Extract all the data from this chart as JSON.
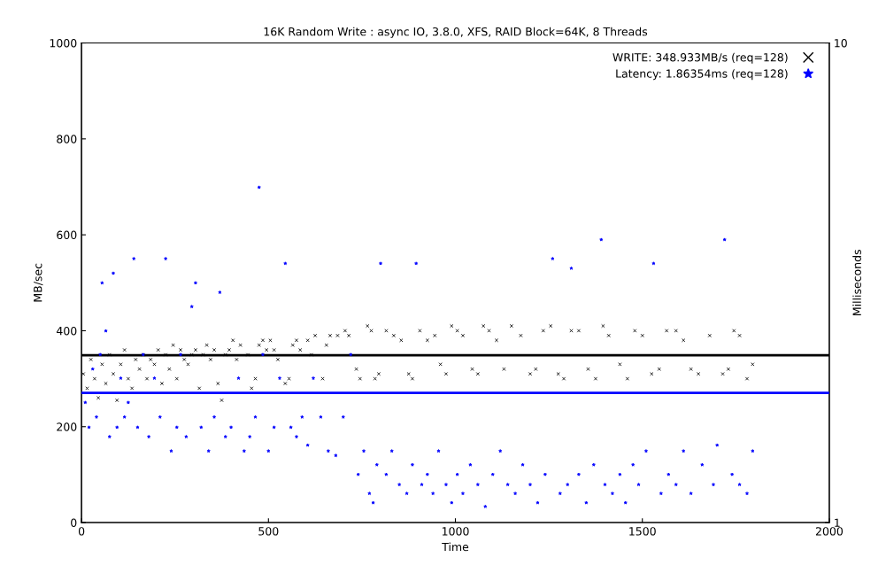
{
  "chart_data": {
    "type": "scatter",
    "title": "16K Random Write : async IO, 3.8.0, XFS, RAID Block=64K, 8 Threads",
    "xlabel": "Time",
    "ylabel": "MB/sec",
    "y2label": "Milliseconds",
    "xlim": [
      0,
      2000
    ],
    "xticks": [
      0,
      500,
      1000,
      1500,
      2000
    ],
    "ylim": [
      0,
      1000
    ],
    "yticks": [
      0,
      200,
      400,
      600,
      800,
      1000
    ],
    "y2lim": [
      1,
      10
    ],
    "y2ticks": [
      1,
      10
    ],
    "log": "y2",
    "grid": false,
    "legend": "top right",
    "series": [
      {
        "name": "WRITE: 348.933MB/s (req=128)",
        "color": "#000000",
        "marker": "cross",
        "x": [
          5,
          15,
          25,
          35,
          45,
          55,
          65,
          75,
          85,
          95,
          105,
          115,
          125,
          135,
          145,
          155,
          165,
          175,
          185,
          195,
          205,
          215,
          225,
          235,
          245,
          255,
          265,
          275,
          285,
          295,
          305,
          315,
          325,
          335,
          345,
          355,
          365,
          375,
          385,
          395,
          405,
          415,
          425,
          445,
          455,
          465,
          475,
          485,
          495,
          505,
          515,
          525,
          545,
          555,
          565,
          575,
          585,
          605,
          615,
          625,
          645,
          655,
          665,
          685,
          705,
          715,
          735,
          745,
          765,
          775,
          785,
          795,
          815,
          835,
          855,
          875,
          885,
          905,
          925,
          945,
          960,
          975,
          990,
          1005,
          1020,
          1045,
          1060,
          1075,
          1090,
          1110,
          1130,
          1150,
          1175,
          1200,
          1215,
          1235,
          1255,
          1275,
          1290,
          1310,
          1330,
          1355,
          1375,
          1395,
          1410,
          1440,
          1460,
          1480,
          1500,
          1525,
          1545,
          1565,
          1590,
          1610,
          1630,
          1650,
          1680,
          1715,
          1730,
          1745,
          1760,
          1780,
          1795
        ],
        "values": [
          310,
          280,
          340,
          300,
          260,
          330,
          290,
          350,
          310,
          255,
          330,
          360,
          300,
          280,
          340,
          320,
          350,
          300,
          340,
          330,
          360,
          290,
          350,
          320,
          370,
          300,
          360,
          340,
          330,
          350,
          360,
          280,
          350,
          370,
          340,
          360,
          290,
          255,
          350,
          360,
          380,
          340,
          370,
          350,
          280,
          300,
          370,
          380,
          360,
          380,
          360,
          340,
          290,
          300,
          370,
          380,
          360,
          380,
          350,
          390,
          300,
          370,
          390,
          390,
          400,
          390,
          320,
          300,
          410,
          400,
          300,
          310,
          400,
          390,
          380,
          310,
          300,
          400,
          380,
          390,
          330,
          310,
          410,
          400,
          390,
          320,
          310,
          410,
          400,
          380,
          320,
          410,
          390,
          310,
          320,
          400,
          410,
          310,
          300,
          400,
          400,
          320,
          300,
          410,
          390,
          330,
          300,
          400,
          390,
          310,
          320,
          400,
          400,
          380,
          320,
          310,
          390,
          310,
          320,
          400,
          390,
          300,
          330
        ]
      },
      {
        "name": "Latency: 1.86354ms (req=128)",
        "color": "#0000ff",
        "marker": "star",
        "axis": "y2",
        "x": [
          10,
          20,
          30,
          40,
          50,
          55,
          65,
          75,
          85,
          95,
          105,
          115,
          125,
          140,
          150,
          165,
          180,
          195,
          210,
          225,
          240,
          255,
          265,
          280,
          295,
          305,
          320,
          340,
          355,
          370,
          385,
          400,
          420,
          435,
          450,
          465,
          475,
          485,
          500,
          515,
          530,
          545,
          560,
          575,
          590,
          605,
          620,
          640,
          660,
          680,
          700,
          720,
          740,
          755,
          770,
          780,
          790,
          800,
          815,
          830,
          850,
          870,
          885,
          895,
          910,
          925,
          940,
          955,
          975,
          990,
          1005,
          1020,
          1040,
          1060,
          1080,
          1100,
          1120,
          1140,
          1160,
          1180,
          1200,
          1220,
          1240,
          1260,
          1280,
          1300,
          1310,
          1330,
          1350,
          1370,
          1390,
          1400,
          1420,
          1440,
          1455,
          1475,
          1490,
          1510,
          1530,
          1550,
          1570,
          1590,
          1610,
          1630,
          1660,
          1690,
          1700,
          1720,
          1740,
          1760,
          1780,
          1795
        ],
        "values": [
          1.78,
          1.58,
          2.09,
          1.66,
          2.24,
          3.16,
          2.51,
          1.51,
          3.31,
          1.58,
          2.0,
          1.66,
          1.78,
          3.55,
          1.58,
          2.24,
          1.51,
          2.0,
          1.66,
          3.55,
          1.41,
          1.58,
          2.24,
          1.51,
          2.82,
          3.16,
          1.58,
          1.41,
          1.66,
          3.02,
          1.51,
          1.58,
          2.0,
          1.41,
          1.51,
          1.66,
          5.0,
          2.24,
          1.41,
          1.58,
          2.0,
          3.47,
          1.58,
          1.51,
          1.66,
          1.45,
          2.0,
          1.66,
          1.41,
          1.38,
          1.66,
          2.24,
          1.26,
          1.41,
          1.15,
          1.1,
          1.32,
          3.47,
          1.26,
          1.41,
          1.2,
          1.15,
          1.32,
          3.47,
          1.2,
          1.26,
          1.15,
          1.41,
          1.2,
          1.1,
          1.26,
          1.15,
          1.32,
          1.2,
          1.08,
          1.26,
          1.41,
          1.2,
          1.15,
          1.32,
          1.2,
          1.1,
          1.26,
          3.55,
          1.15,
          1.2,
          3.39,
          1.26,
          1.1,
          1.32,
          3.89,
          1.2,
          1.15,
          1.26,
          1.1,
          1.32,
          1.2,
          1.41,
          3.47,
          1.15,
          1.26,
          1.2,
          1.41,
          1.15,
          1.32,
          1.2,
          1.45,
          3.89,
          1.26,
          1.2,
          1.15,
          1.41
        ]
      }
    ],
    "ref_lines": [
      {
        "axis": "y",
        "value": 348.933,
        "color": "#000000"
      },
      {
        "axis": "y2",
        "value": 1.86354,
        "color": "#0000ff"
      }
    ]
  }
}
